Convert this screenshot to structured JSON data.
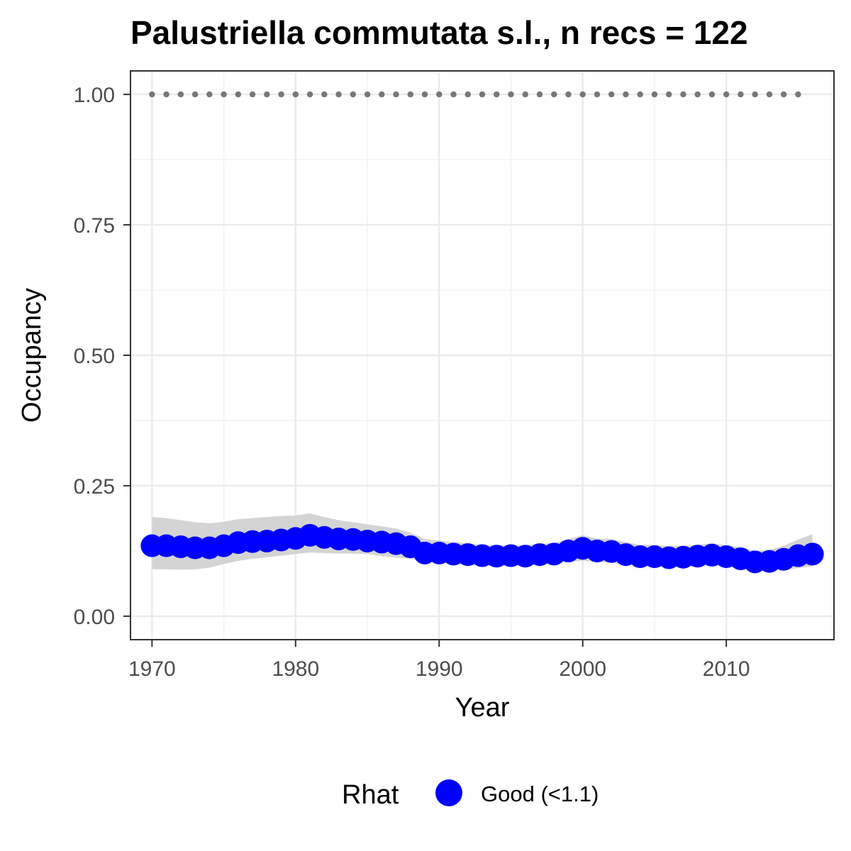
{
  "chart_data": {
    "type": "line",
    "title": "Palustriella commutata s.l., n recs = 122",
    "xlabel": "Year",
    "ylabel": "Occupancy",
    "xlim": [
      1968.5,
      2017.5
    ],
    "ylim": [
      -0.045,
      1.045
    ],
    "x_ticks": [
      1970,
      1980,
      1990,
      2000,
      2010
    ],
    "y_ticks": [
      0.0,
      0.25,
      0.5,
      0.75,
      1.0
    ],
    "y_tick_labels": [
      "0.00",
      "0.25",
      "0.50",
      "0.75",
      "1.00"
    ],
    "grid": true,
    "x": [
      1970,
      1971,
      1972,
      1973,
      1974,
      1975,
      1976,
      1977,
      1978,
      1979,
      1980,
      1981,
      1982,
      1983,
      1984,
      1985,
      1986,
      1987,
      1988,
      1989,
      1990,
      1991,
      1992,
      1993,
      1994,
      1995,
      1996,
      1997,
      1998,
      1999,
      2000,
      2001,
      2002,
      2003,
      2004,
      2005,
      2006,
      2007,
      2008,
      2009,
      2010,
      2011,
      2012,
      2013,
      2014,
      2015,
      2016
    ],
    "series": [
      {
        "color": "#0000ff",
        "values": [
          0.135,
          0.135,
          0.133,
          0.131,
          0.131,
          0.135,
          0.141,
          0.143,
          0.144,
          0.146,
          0.149,
          0.155,
          0.151,
          0.148,
          0.147,
          0.144,
          0.142,
          0.139,
          0.133,
          0.121,
          0.121,
          0.119,
          0.118,
          0.116,
          0.115,
          0.116,
          0.115,
          0.118,
          0.119,
          0.125,
          0.13,
          0.125,
          0.124,
          0.118,
          0.114,
          0.114,
          0.112,
          0.113,
          0.115,
          0.117,
          0.114,
          0.11,
          0.104,
          0.105,
          0.109,
          0.116,
          0.119
        ],
        "lower": [
          0.09,
          0.09,
          0.089,
          0.09,
          0.093,
          0.1,
          0.106,
          0.11,
          0.113,
          0.116,
          0.119,
          0.122,
          0.121,
          0.12,
          0.12,
          0.119,
          0.115,
          0.112,
          0.11,
          0.105,
          0.102,
          0.1,
          0.098,
          0.097,
          0.096,
          0.096,
          0.097,
          0.099,
          0.101,
          0.104,
          0.106,
          0.104,
          0.102,
          0.098,
          0.096,
          0.095,
          0.094,
          0.095,
          0.096,
          0.097,
          0.095,
          0.092,
          0.089,
          0.088,
          0.089,
          0.092,
          0.095
        ],
        "upper": [
          0.19,
          0.188,
          0.184,
          0.18,
          0.178,
          0.181,
          0.186,
          0.188,
          0.19,
          0.192,
          0.193,
          0.197,
          0.19,
          0.184,
          0.18,
          0.176,
          0.172,
          0.168,
          0.16,
          0.148,
          0.145,
          0.142,
          0.14,
          0.137,
          0.136,
          0.137,
          0.136,
          0.139,
          0.14,
          0.148,
          0.155,
          0.149,
          0.148,
          0.142,
          0.137,
          0.137,
          0.134,
          0.135,
          0.137,
          0.14,
          0.136,
          0.132,
          0.125,
          0.127,
          0.135,
          0.147,
          0.157
        ]
      }
    ],
    "reference_line": {
      "y": 1.0,
      "x_range": [
        1970,
        2015
      ],
      "style": "dotted",
      "color": "#777777"
    },
    "ribbon_color": "#d4d4d4",
    "legend": {
      "title": "Rhat",
      "position": "bottom",
      "entries": [
        {
          "label": "Good (<1.1)",
          "color": "#0000ff"
        }
      ]
    }
  }
}
